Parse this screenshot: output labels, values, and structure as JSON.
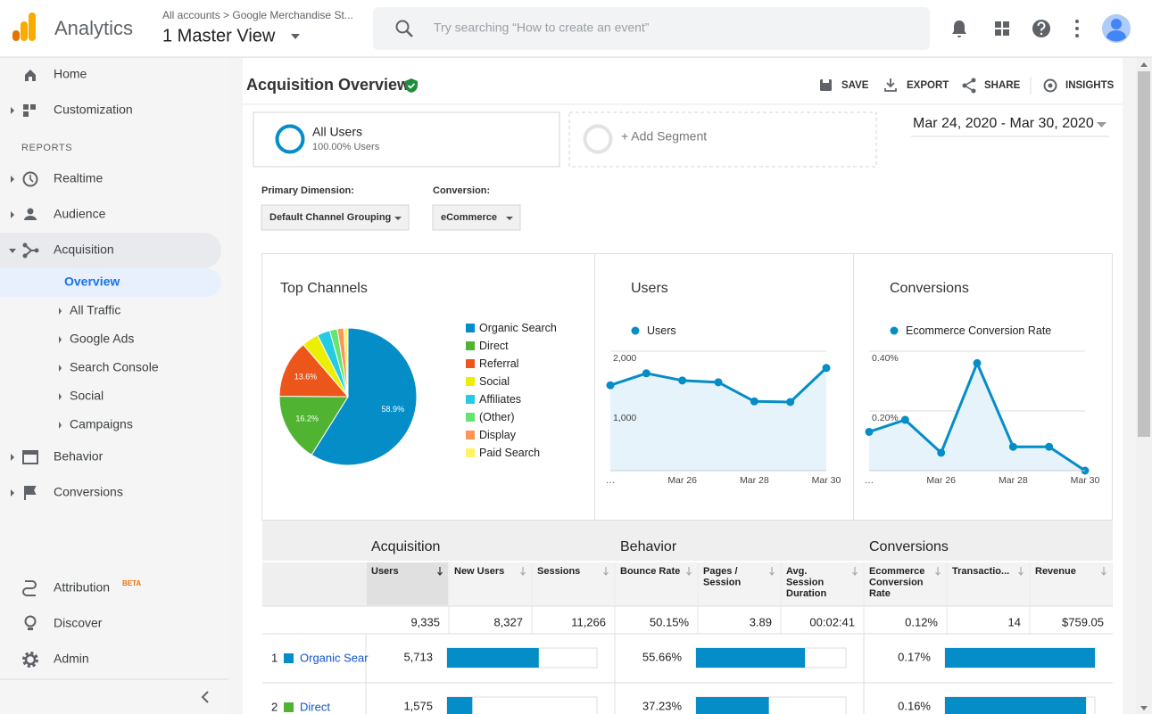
{
  "header": {
    "product": "Analytics",
    "breadcrumb": "All accounts > Google Merchandise St...",
    "view": "1 Master View",
    "search_placeholder": "Try searching “How to create an event”"
  },
  "nav": {
    "home": "Home",
    "customization": "Customization",
    "reports": "REPORTS",
    "realtime": "Realtime",
    "audience": "Audience",
    "acquisition": "Acquisition",
    "acquisition_items": [
      "Overview",
      "All Traffic",
      "Google Ads",
      "Search Console",
      "Social",
      "Campaigns"
    ],
    "behavior": "Behavior",
    "conversions": "Conversions",
    "attribution": "Attribution",
    "beta": "BETA",
    "discover": "Discover",
    "admin": "Admin"
  },
  "page": {
    "title": "Acquisition Overview",
    "actions": [
      "SAVE",
      "EXPORT",
      "SHARE",
      "INSIGHTS"
    ]
  },
  "segments": {
    "active": {
      "name": "All Users",
      "detail": "100.00% Users"
    },
    "add": "+ Add Segment"
  },
  "date_range": "Mar 24, 2020 - Mar 30, 2020",
  "controls": {
    "primary_dimension": {
      "label": "Primary Dimension:",
      "value": "Default Channel Grouping"
    },
    "conversion": {
      "label": "Conversion:",
      "value": "eCommerce"
    }
  },
  "chart_data": [
    {
      "type": "pie",
      "title": "Top Channels",
      "categories": [
        "Organic Search",
        "Direct",
        "Referral",
        "Social",
        "Affiliates",
        "(Other)",
        "Display",
        "Paid Search"
      ],
      "values": [
        58.9,
        16.2,
        13.6,
        4.0,
        3.0,
        1.8,
        1.5,
        1.0
      ],
      "value_labels": [
        "58.9%",
        "16.2%",
        "13.6%",
        null,
        null,
        null,
        null,
        null
      ],
      "colors": [
        "#058dc7",
        "#50b432",
        "#ed561b",
        "#edef00",
        "#24cbe5",
        "#64e572",
        "#ff9655",
        "#fff263"
      ],
      "legend": "right"
    },
    {
      "type": "line",
      "title": "Users",
      "categories": [
        "…",
        null,
        "Mar 26",
        null,
        "Mar 28",
        null,
        "Mar 30"
      ],
      "series": [
        {
          "name": "Users",
          "color": "#058dc7",
          "values": [
            1430,
            1630,
            1510,
            1480,
            1160,
            1150,
            1720
          ]
        }
      ],
      "ylim": [
        0,
        2000
      ],
      "yticks": [
        {
          "value": 1000,
          "label": "1,000"
        },
        {
          "value": 2000,
          "label": "2,000"
        }
      ],
      "grid": true
    },
    {
      "type": "line",
      "title": "Conversions",
      "categories": [
        "…",
        null,
        "Mar 26",
        null,
        "Mar 28",
        null,
        "Mar 30"
      ],
      "series": [
        {
          "name": "Ecommerce Conversion Rate",
          "color": "#058dc7",
          "values": [
            0.13,
            0.17,
            0.06,
            0.36,
            0.08,
            0.08,
            0.0
          ]
        }
      ],
      "ylim": [
        0,
        0.4
      ],
      "yticks": [
        {
          "value": 0.2,
          "label": "0.20%"
        },
        {
          "value": 0.4,
          "label": "0.40%"
        }
      ],
      "grid": true
    }
  ],
  "table": {
    "groups": [
      "Acquisition",
      "Behavior",
      "Conversions"
    ],
    "columns": [
      "Users",
      "New Users",
      "Sessions",
      "Bounce Rate",
      "Pages / Session",
      "Avg. Session Duration",
      "Ecommerce Conversion Rate",
      "Transactio...",
      "Revenue"
    ],
    "totals": [
      "9,335",
      "8,327",
      "11,266",
      "50.15%",
      "3.89",
      "00:02:41",
      "0.12%",
      "14",
      "$759.05"
    ],
    "bar_xlims": [
      [
        0,
        9335
      ],
      [
        0,
        76.6
      ],
      [
        0,
        0.17
      ]
    ],
    "bar_color": "#058dc7",
    "rows": [
      {
        "rank": "1",
        "channel": "Organic Sear",
        "color": "#058dc7",
        "values": [
          5713,
          55.66,
          0.17
        ],
        "value_labels": [
          "5,713",
          "55.66%",
          "0.17%"
        ]
      },
      {
        "rank": "2",
        "channel": "Direct",
        "color": "#50b432",
        "values": [
          1575,
          37.23,
          0.16
        ],
        "value_labels": [
          "1,575",
          "37.23%",
          "0.16%"
        ]
      }
    ]
  }
}
